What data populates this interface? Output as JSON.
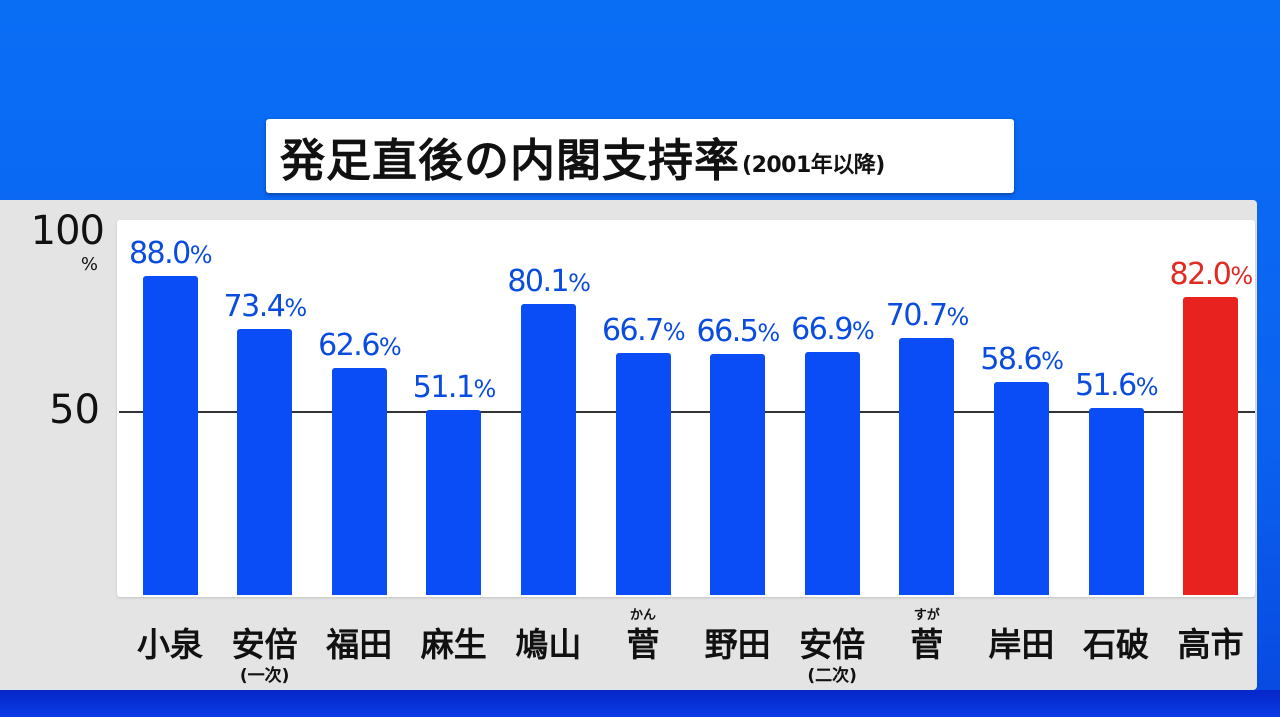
{
  "title": {
    "main": "発足直後の内閣支持率",
    "sub": "(2001年以降)"
  },
  "colors": {
    "background": "#0b62f0",
    "bar_default": "#0a4cf5",
    "bar_highlight": "#e8231f",
    "label_default": "#0a4ce0",
    "label_highlight": "#e02a22",
    "panel": "#e4e4e4",
    "plot": "#ffffff"
  },
  "axis": {
    "y_ticks": [
      {
        "label": "100",
        "value": 100
      },
      {
        "label": "50",
        "value": 50
      }
    ],
    "y_unit": "%"
  },
  "chart_data": {
    "type": "bar",
    "title": "発足直後の内閣支持率(2001年以降)",
    "xlabel": "",
    "ylabel": "%",
    "ylim": [
      0,
      100
    ],
    "gridlines": [
      50
    ],
    "categories": [
      "小泉",
      "安倍(一次)",
      "福田",
      "麻生",
      "鳩山",
      "菅(かん)",
      "野田",
      "安倍(二次)",
      "菅(すが)",
      "岸田",
      "石破",
      "高市"
    ],
    "values": [
      88.0,
      73.4,
      62.6,
      51.1,
      80.1,
      66.7,
      66.5,
      66.9,
      70.7,
      58.6,
      51.6,
      82.0
    ],
    "highlight": "高市",
    "bars": [
      {
        "name": "小泉",
        "note": "",
        "ruby": "",
        "value": 88.0,
        "label": "88.0",
        "highlight": false
      },
      {
        "name": "安倍",
        "note": "(一次)",
        "ruby": "",
        "value": 73.4,
        "label": "73.4",
        "highlight": false
      },
      {
        "name": "福田",
        "note": "",
        "ruby": "",
        "value": 62.6,
        "label": "62.6",
        "highlight": false
      },
      {
        "name": "麻生",
        "note": "",
        "ruby": "",
        "value": 51.1,
        "label": "51.1",
        "highlight": false
      },
      {
        "name": "鳩山",
        "note": "",
        "ruby": "",
        "value": 80.1,
        "label": "80.1",
        "highlight": false
      },
      {
        "name": "菅",
        "note": "",
        "ruby": "かん",
        "value": 66.7,
        "label": "66.7",
        "highlight": false
      },
      {
        "name": "野田",
        "note": "",
        "ruby": "",
        "value": 66.5,
        "label": "66.5",
        "highlight": false
      },
      {
        "name": "安倍",
        "note": "(二次)",
        "ruby": "",
        "value": 66.9,
        "label": "66.9",
        "highlight": false
      },
      {
        "name": "菅",
        "note": "",
        "ruby": "すが",
        "value": 70.7,
        "label": "70.7",
        "highlight": false
      },
      {
        "name": "岸田",
        "note": "",
        "ruby": "",
        "value": 58.6,
        "label": "58.6",
        "highlight": false
      },
      {
        "name": "石破",
        "note": "",
        "ruby": "",
        "value": 51.6,
        "label": "51.6",
        "highlight": false
      },
      {
        "name": "高市",
        "note": "",
        "ruby": "",
        "value": 82.0,
        "label": "82.0",
        "highlight": true
      }
    ],
    "value_suffix": "%"
  }
}
